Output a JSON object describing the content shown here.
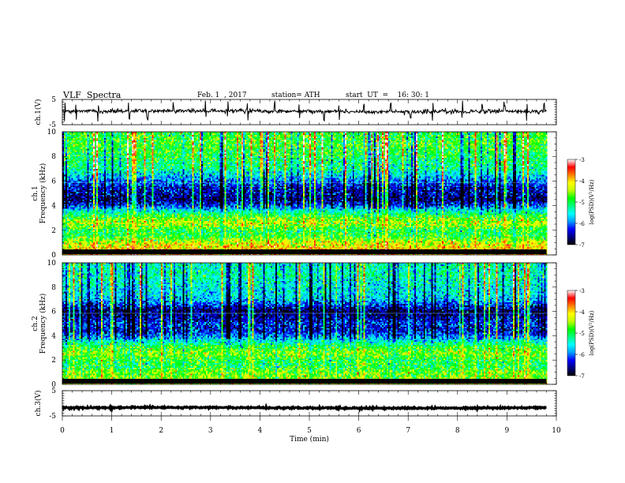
{
  "header": {
    "title": "VLF  Spectra",
    "date": "Feb. 1  , 2017",
    "station": "station= ATH",
    "start": "start  UT  =    16: 30: 1"
  },
  "chart_data": [
    {
      "type": "line",
      "panel": "ch1-waveform",
      "ylabel": "ch.1(V)",
      "ylim": [
        -5,
        5
      ],
      "yticks": [
        "5",
        "-5"
      ],
      "xlim": [
        0,
        10
      ],
      "mean_value": 0.3,
      "noise_amplitude": 0.8,
      "spike_times_min": [
        0.05,
        0.28,
        0.72,
        1.35,
        1.72,
        2.25,
        2.9,
        3.35,
        3.75,
        4.3,
        4.8,
        5.3,
        5.6,
        6.1,
        6.65,
        7.05,
        7.5,
        8.1,
        8.5,
        8.95,
        9.4,
        9.75
      ]
    },
    {
      "type": "heatmap",
      "panel": "ch1-spectrogram",
      "ylabel": "ch.1 Frequency (kHz)",
      "ylim": [
        0,
        10
      ],
      "yticks": [
        "0",
        "2",
        "4",
        "6",
        "8",
        "10"
      ],
      "xlim": [
        0,
        10
      ],
      "data_end_min": 9.8,
      "colorbar": {
        "label": "log(PSD)(V²/Hz)",
        "range": [
          -7,
          -3
        ],
        "ticks": [
          "-3",
          "-4",
          "-5",
          "-6",
          "-7"
        ]
      },
      "band_profile_kHz_to_logPSD": [
        [
          0,
          -3.8
        ],
        [
          0.5,
          -4.0
        ],
        [
          1.0,
          -4.3
        ],
        [
          1.5,
          -4.9
        ],
        [
          2.0,
          -5.0
        ],
        [
          2.5,
          -4.4
        ],
        [
          3.0,
          -4.7
        ],
        [
          3.5,
          -5.3
        ],
        [
          4.0,
          -6.2
        ],
        [
          4.5,
          -6.7
        ],
        [
          5.0,
          -6.5
        ],
        [
          5.5,
          -6.4
        ],
        [
          6.0,
          -6.0
        ],
        [
          6.5,
          -5.6
        ],
        [
          7.0,
          -5.2
        ],
        [
          8.0,
          -5.0
        ],
        [
          9.0,
          -4.8
        ],
        [
          10.0,
          -4.9
        ]
      ]
    },
    {
      "type": "heatmap",
      "panel": "ch2-spectrogram",
      "ylabel": "ch.2 Frequency (kHz)",
      "ylim": [
        0,
        10
      ],
      "yticks": [
        "0",
        "2",
        "4",
        "6",
        "8",
        "10"
      ],
      "xlim": [
        0,
        10
      ],
      "data_end_min": 9.8,
      "colorbar": {
        "label": "log(PSD)(V²/Hz)",
        "range": [
          -7,
          -3
        ],
        "ticks": [
          "-3",
          "-4",
          "-5",
          "-6",
          "-7"
        ]
      },
      "band_profile_kHz_to_logPSD": [
        [
          0,
          -4.2
        ],
        [
          0.5,
          -4.6
        ],
        [
          1.0,
          -4.6
        ],
        [
          1.5,
          -5.0
        ],
        [
          2.0,
          -4.9
        ],
        [
          2.5,
          -4.6
        ],
        [
          3.0,
          -4.8
        ],
        [
          3.5,
          -5.4
        ],
        [
          4.0,
          -6.0
        ],
        [
          4.5,
          -6.4
        ],
        [
          5.0,
          -6.2
        ],
        [
          5.5,
          -6.5
        ],
        [
          6.0,
          -6.8
        ],
        [
          6.5,
          -6.2
        ],
        [
          7.0,
          -5.7
        ],
        [
          8.0,
          -5.5
        ],
        [
          9.0,
          -5.3
        ],
        [
          10.0,
          -5.4
        ]
      ]
    },
    {
      "type": "line",
      "panel": "ch3-waveform",
      "ylabel": "ch.3(V)",
      "ylim": [
        -5,
        5
      ],
      "yticks": [
        "5",
        "-5"
      ],
      "xlim": [
        0,
        10
      ],
      "mean_value": -1.8,
      "noise_amplitude": 0.3,
      "xlabel": "Time  (min)",
      "xticks": [
        "0",
        "1",
        "2",
        "3",
        "4",
        "5",
        "6",
        "7",
        "8",
        "9",
        "10"
      ]
    }
  ],
  "colors": {
    "colormap": [
      "#000000",
      "#000080",
      "#0000ff",
      "#00a0ff",
      "#00ffff",
      "#00ff80",
      "#00ff00",
      "#c0ff00",
      "#ffff00",
      "#ff8000",
      "#ff0000",
      "#ffffff"
    ]
  }
}
